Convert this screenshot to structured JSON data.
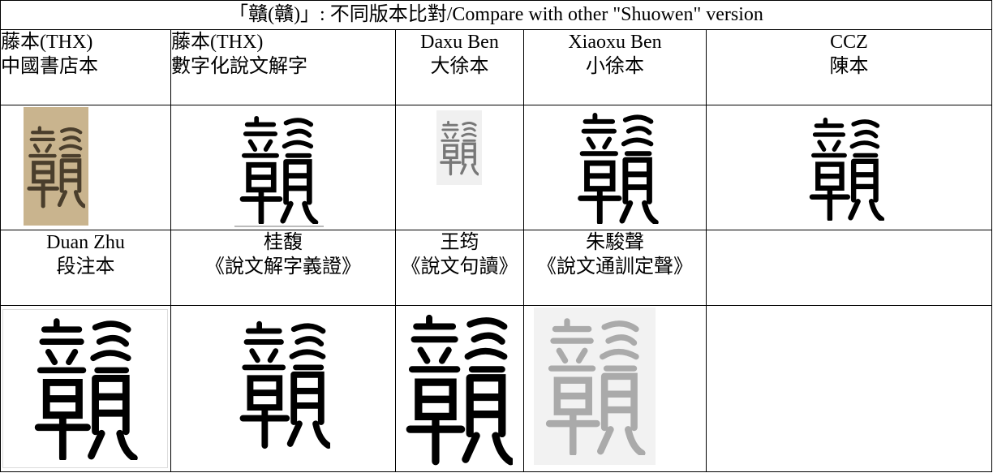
{
  "title": "「贛(贛)」: 不同版本比對/Compare with other \"Shuowen\" version",
  "row1": [
    {
      "lines": [
        "藤本(THX)",
        "中國書店本"
      ]
    },
    {
      "lines": [
        "藤本(THX)",
        "數字化說文解字"
      ]
    },
    {
      "lines": [
        "Daxu Ben",
        "大徐本"
      ]
    },
    {
      "lines": [
        "Xiaoxu Ben",
        "小徐本"
      ]
    },
    {
      "lines": [
        "CCZ",
        "陳本"
      ]
    }
  ],
  "row2": [
    {
      "lines": [
        "Duan Zhu",
        "段注本"
      ]
    },
    {
      "lines": [
        "桂馥",
        "《說文解字義證》"
      ]
    },
    {
      "lines": [
        "王筠",
        "《說文句讀》"
      ]
    },
    {
      "lines": [
        "朱駿聲",
        "《說文通訓定聲》"
      ]
    }
  ]
}
